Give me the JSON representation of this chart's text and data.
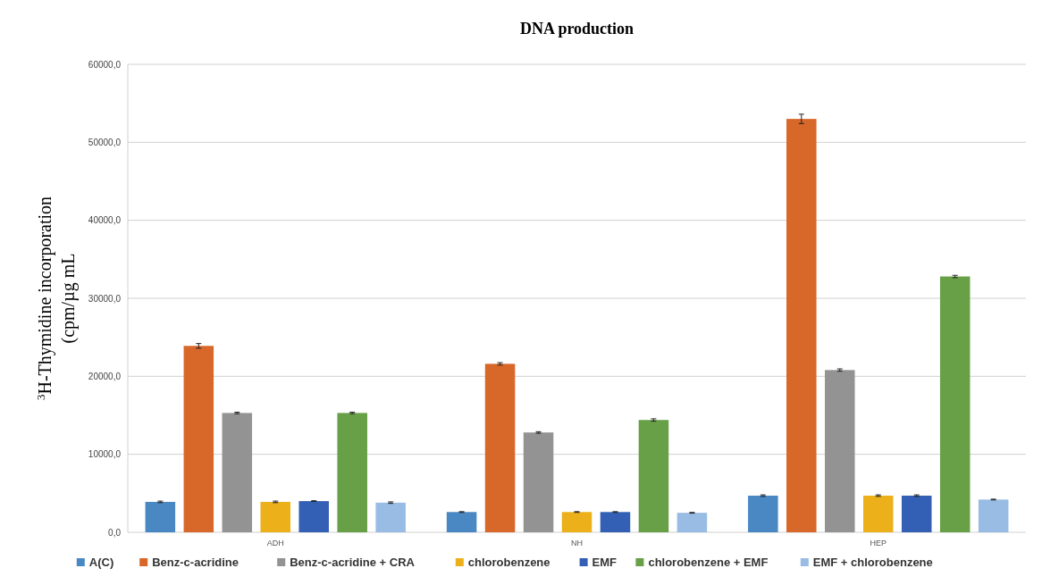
{
  "chart_data": {
    "type": "bar",
    "title": "DNA production",
    "ylabel": "$^{3}$H-Thymidine incorporation (cpm/µg mL",
    "categories": [
      "ADH",
      "NH",
      "HEP"
    ],
    "series": [
      {
        "name": "A(C)",
        "color": "#4a88c4",
        "values": [
          3900,
          2600,
          4700
        ],
        "errors": [
          100,
          50,
          100
        ]
      },
      {
        "name": "Benz-c-acridine",
        "color": "#d8672a",
        "values": [
          23900,
          21600,
          53000
        ],
        "errors": [
          300,
          150,
          600
        ]
      },
      {
        "name": "Benz-c-acridine + CRA",
        "color": "#939393",
        "values": [
          15300,
          12800,
          20800
        ],
        "errors": [
          100,
          100,
          150
        ]
      },
      {
        "name": "chlorobenzene",
        "color": "#ecb11a",
        "values": [
          3900,
          2600,
          4700
        ],
        "errors": [
          100,
          50,
          100
        ]
      },
      {
        "name": "EMF",
        "color": "#3360b5",
        "values": [
          4000,
          2600,
          4700
        ],
        "errors": [
          50,
          50,
          100
        ]
      },
      {
        "name": "chlorobenzene + EMF",
        "color": "#67a046",
        "values": [
          15300,
          14400,
          32800
        ],
        "errors": [
          100,
          150,
          150
        ]
      },
      {
        "name": "EMF + chlorobenzene",
        "color": "#98bce4",
        "values": [
          3800,
          2500,
          4200
        ],
        "errors": [
          100,
          50,
          50
        ]
      }
    ],
    "ylim": [
      0,
      60000
    ],
    "yticks": [
      {
        "value": 0,
        "label": "0,0"
      },
      {
        "value": 10000,
        "label": "10000,0"
      },
      {
        "value": 20000,
        "label": "20000,0"
      },
      {
        "value": 30000,
        "label": "30000,0"
      },
      {
        "value": 40000,
        "label": "40000,0"
      },
      {
        "value": 50000,
        "label": "50000,0"
      },
      {
        "value": 60000,
        "label": "60000,0"
      }
    ],
    "grid": "y",
    "legend": "bottom"
  }
}
